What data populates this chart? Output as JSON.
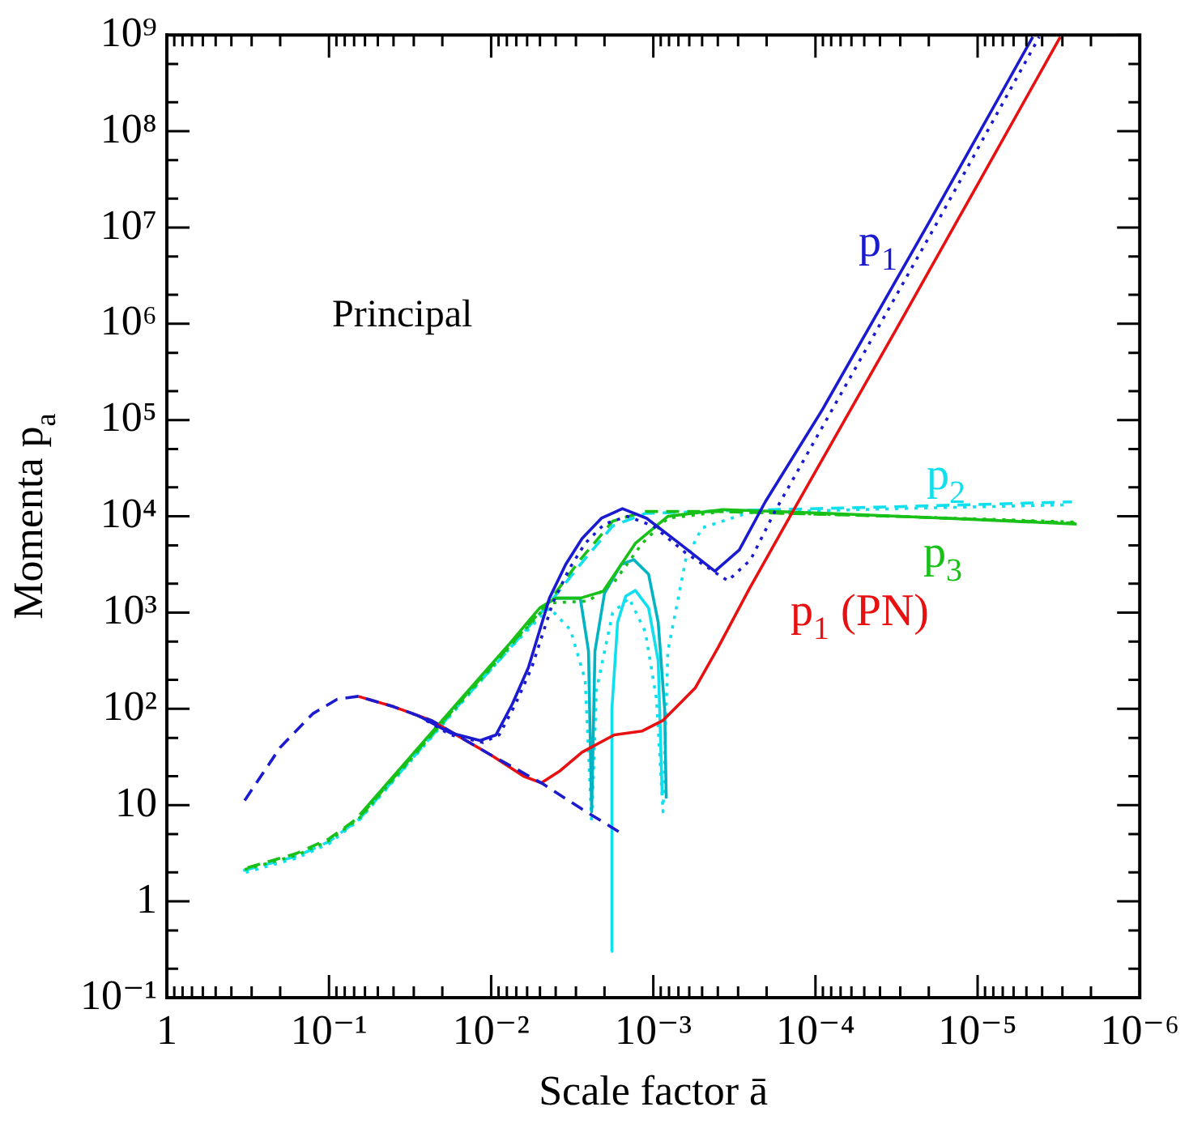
{
  "chart_data": {
    "type": "line",
    "xlabel": "Scale factor ā",
    "ylabel": "Momenta p$_{a}$",
    "log": "xy",
    "grid": false,
    "legend": false,
    "marker": "none",
    "xlim": [
      1,
      1e-06
    ],
    "ylim": [
      0.1,
      1000000000.0
    ],
    "xticks": [
      1,
      {
        "value": 0.9,
        "label": null
      },
      {
        "value": 0.8,
        "label": null
      },
      {
        "value": 0.7,
        "label": null
      },
      {
        "value": 0.6,
        "label": null
      },
      {
        "value": 0.5,
        "label": null
      },
      {
        "value": 0.4,
        "label": null
      },
      {
        "value": 0.3,
        "label": null
      },
      {
        "value": 0.2,
        "label": null
      },
      {
        "value": 0.1,
        "label": "10⁻¹"
      },
      {
        "value": 0.09,
        "label": null
      },
      {
        "value": 0.08,
        "label": null
      },
      {
        "value": 0.07,
        "label": null
      },
      {
        "value": 0.06,
        "label": null
      },
      {
        "value": 0.05,
        "label": null
      },
      {
        "value": 0.04,
        "label": null
      },
      {
        "value": 0.03,
        "label": null
      },
      {
        "value": 0.02,
        "label": null
      },
      {
        "value": 0.01,
        "label": "10⁻²"
      },
      {
        "value": 0.009,
        "label": null
      },
      {
        "value": 0.008,
        "label": null
      },
      {
        "value": 0.007,
        "label": null
      },
      {
        "value": 0.006,
        "label": null
      },
      {
        "value": 0.005,
        "label": null
      },
      {
        "value": 0.004,
        "label": null
      },
      {
        "value": 0.003,
        "label": null
      },
      {
        "value": 0.002,
        "label": null
      },
      {
        "value": 0.001,
        "label": "10⁻³"
      },
      {
        "value": 0.0009,
        "label": null
      },
      {
        "value": 0.0008,
        "label": null
      },
      {
        "value": 0.0007,
        "label": null
      },
      {
        "value": 0.0006,
        "label": null
      },
      {
        "value": 0.0005,
        "label": null
      },
      {
        "value": 0.0004,
        "label": null
      },
      {
        "value": 0.0003,
        "label": null
      },
      {
        "value": 0.0002,
        "label": null
      },
      {
        "value": 0.0001,
        "label": "10⁻⁴"
      },
      {
        "value": 9e-05,
        "label": null
      },
      {
        "value": 8e-05,
        "label": null
      },
      {
        "value": 7e-05,
        "label": null
      },
      {
        "value": 6e-05,
        "label": null
      },
      {
        "value": 5e-05,
        "label": null
      },
      {
        "value": 4e-05,
        "label": null
      },
      {
        "value": 3e-05,
        "label": null
      },
      {
        "value": 2e-05,
        "label": null
      },
      {
        "value": 1e-05,
        "label": "10⁻⁵"
      },
      {
        "value": 9e-06,
        "label": null
      },
      {
        "value": 8e-06,
        "label": null
      },
      {
        "value": 7e-06,
        "label": null
      },
      {
        "value": 6e-06,
        "label": null
      },
      {
        "value": 5e-06,
        "label": null
      },
      {
        "value": 4e-06,
        "label": null
      },
      {
        "value": 3e-06,
        "label": null
      },
      {
        "value": 2e-06,
        "label": null
      },
      {
        "value": 1e-06,
        "label": "10⁻⁶"
      }
    ],
    "yticks": [
      {
        "value": 0.1,
        "label": "10⁻¹"
      },
      {
        "value": 0.2,
        "label": null
      },
      {
        "value": 0.5,
        "label": null
      },
      1,
      {
        "value": 2,
        "label": null
      },
      {
        "value": 5,
        "label": null
      },
      10,
      {
        "value": 20,
        "label": null
      },
      {
        "value": 50,
        "label": null
      },
      {
        "value": 100,
        "label": "10²"
      },
      {
        "value": 200,
        "label": null
      },
      {
        "value": 500,
        "label": null
      },
      {
        "value": 1000,
        "label": "10³"
      },
      {
        "value": 2000,
        "label": null
      },
      {
        "value": 5000,
        "label": null
      },
      {
        "value": 10000,
        "label": "10⁴"
      },
      {
        "value": 20000,
        "label": null
      },
      {
        "value": 50000,
        "label": null
      },
      {
        "value": 100000,
        "label": "10⁵"
      },
      {
        "value": 200000,
        "label": null
      },
      {
        "value": 500000,
        "label": null
      },
      {
        "value": 1000000,
        "label": "10⁶"
      },
      {
        "value": 2000000,
        "label": null
      },
      {
        "value": 5000000,
        "label": null
      },
      {
        "value": 10000000,
        "label": "10⁷"
      },
      {
        "value": 20000000,
        "label": null
      },
      {
        "value": 50000000,
        "label": null
      },
      {
        "value": 100000000,
        "label": "10⁸"
      },
      {
        "value": 200000000,
        "label": null
      },
      {
        "value": 500000000,
        "label": null
      },
      {
        "value": 1000000000,
        "label": "10⁹"
      }
    ],
    "annotations": [
      "Principal"
    ],
    "series": [
      {
        "name": "p$_{1}$",
        "color": "#1a1ad0",
        "line_style": "solid",
        "x": [
          0.0282,
          0.0178,
          0.0117,
          0.00933,
          0.00741,
          0.00589,
          0.00437,
          0.00347,
          0.00275,
          0.00209,
          0.00155,
          0.0011,
          0.000692,
          0.000417,
          0.000295,
          0.000204,
          9.12e-05,
          2e-05,
          4.57e-06
        ],
        "values": [
          85,
          56.2,
          46.8,
          53.7,
          112,
          269,
          1413,
          3162,
          5888,
          9550,
          12020,
          9550,
          5248,
          2692,
          4467,
          14125,
          126000,
          11200000,
          955000000
        ]
      },
      {
        "color": "#1a1ad0",
        "line_style": "dotted",
        "x": [
          0.0282,
          0.0178,
          0.0112,
          0.00891,
          0.00708,
          0.00562,
          0.00417,
          0.00331,
          0.00263,
          0.002,
          0.00145,
          0.001,
          0.000631,
          0.000347,
          0.000251,
          0.000178,
          7.94e-05,
          1.78e-05,
          4.17e-06
        ],
        "values": [
          85,
          53.7,
          44.7,
          53.7,
          112,
          269,
          1259,
          2818,
          5248,
          8318,
          10000,
          7943,
          4169,
          2138,
          3548,
          11220,
          126000,
          11200000,
          955000000
        ]
      },
      {
        "color": "#1a1ad0",
        "line_style": "dashed",
        "x": [
          0.331,
          0.2,
          0.126,
          0.0891,
          0.0661,
          0.0398,
          0.0234,
          0.01,
          0.0049,
          0.00282,
          0.00162
        ],
        "values": [
          11.2,
          39.8,
          89,
          126,
          135,
          105,
          75.9,
          33.1,
          17,
          9.33,
          5.25
        ]
      },
      {
        "name": "p$_{1}$ (PN)",
        "color": "#e81010",
        "line_style": "solid",
        "x": [
          0.0661,
          0.0398,
          0.0234,
          0.01,
          0.00631,
          0.0049,
          0.0038,
          0.00275,
          0.00174,
          0.00117,
          0.000871,
          0.000692,
          0.00055,
          0.000398,
          0.000257,
          0.000138,
          3.16e-05,
          1e-05,
          3.09e-06
        ],
        "values": [
          135,
          105,
          75.9,
          33.1,
          20,
          17,
          22.4,
          35.5,
          53.7,
          58.9,
          75.9,
          112,
          166,
          436,
          1738,
          11220,
          890000,
          28000000,
          955000000
        ]
      },
      {
        "name": "p$_{3}$",
        "color": "#18c018",
        "line_style": "solid",
        "x": [
          0.0646,
          0.0316,
          0.0158,
          0.00794,
          0.00501,
          0.00398,
          0.00282,
          0.00204,
          0.00129,
          0.000813,
          0.000372,
          8.13e-05,
          1.58e-05,
          2.45e-06
        ],
        "values": [
          7.94,
          31.6,
          120,
          447,
          1122,
          1413,
          1413,
          1660,
          5248,
          10000,
          11749,
          10715,
          9550,
          8318
        ]
      },
      {
        "color": "#18c018",
        "line_style": "dotted",
        "x": [
          0.331,
          0.158,
          0.1,
          0.0646,
          0.0316,
          0.0158,
          0.00794,
          0.00437,
          0.00251,
          0.00174,
          0.00117,
          0.000813,
          0.000372,
          3.16e-05,
          2.45e-06
        ],
        "values": [
          2.14,
          3.02,
          4.27,
          7.41,
          29.5,
          112,
          417,
          1259,
          1318,
          2089,
          5248,
          9550,
          11220,
          10000,
          8710
        ]
      },
      {
        "color": "#18c018",
        "line_style": "dashed",
        "x": [
          0.318,
          0.158,
          0.1,
          0.0646,
          0.0316,
          0.0158,
          0.00794,
          0.00447,
          0.00282,
          0.00178,
          0.00112,
          0.000398,
          3.16e-05,
          2.52e-06
        ],
        "values": [
          2.24,
          3.16,
          4.47,
          7.59,
          30.2,
          115,
          427,
          1259,
          3548,
          8913,
          11220,
          11220,
          10000,
          8511
        ]
      },
      {
        "color": "#00b4c4",
        "line_style": "solid",
        "x": [
          0.00398,
          0.00282,
          0.00251,
          0.0024,
          0.00229,
          0.002,
          0.00158,
          0.00132,
          0.00107,
          0.000933,
          0.000851,
          0.000832
        ],
        "values": [
          1413,
          1413,
          398,
          8.51,
          398,
          1585,
          3162,
          3548,
          2512,
          794,
          100,
          11.7
        ]
      },
      {
        "color": "#10e0ee",
        "line_style": "solid",
        "x": [
          0.00182,
          0.0018,
          0.00166,
          0.00148,
          0.00129,
          0.00107,
          0.000933,
          0.000881
        ],
        "values": [
          0.302,
          100,
          794,
          1479,
          1698,
          1122,
          316,
          12.6
        ]
      },
      {
        "color": "#10e0ee",
        "line_style": "dotted",
        "x": [
          0.326,
          0.158,
          0.1,
          0.0646,
          0.0316,
          0.0158,
          0.00794,
          0.00437,
          0.00324,
          0.00263,
          0.0024,
          0.00224,
          0.00178,
          0.00141,
          0.00112,
          0.000955,
          0.000871,
          0.000813,
          0.000631,
          0.000501,
          0.000257,
          3.16e-05,
          2.72e-06
        ],
        "values": [
          2.0,
          2.82,
          3.98,
          7.08,
          28.2,
          107,
          398,
          1122,
          661,
          200,
          6.61,
          158,
          1000,
          1413,
          631,
          126,
          8.51,
          398,
          3548,
          7586,
          10965,
          12023,
          13183
        ]
      },
      {
        "name": "p$_{2}$",
        "color": "#10e0ee",
        "line_style": "dashed",
        "x": [
          0.338,
          0.158,
          0.1,
          0.0646,
          0.0316,
          0.0158,
          0.00794,
          0.00447,
          0.00282,
          0.00178,
          0.00112,
          0.000316,
          3.16e-05,
          2.63e-06
        ],
        "values": [
          2.09,
          2.95,
          4.17,
          7.24,
          28.8,
          110,
          398,
          1202,
          3162,
          7943,
          10715,
          11482,
          12589,
          14125
        ]
      }
    ]
  }
}
